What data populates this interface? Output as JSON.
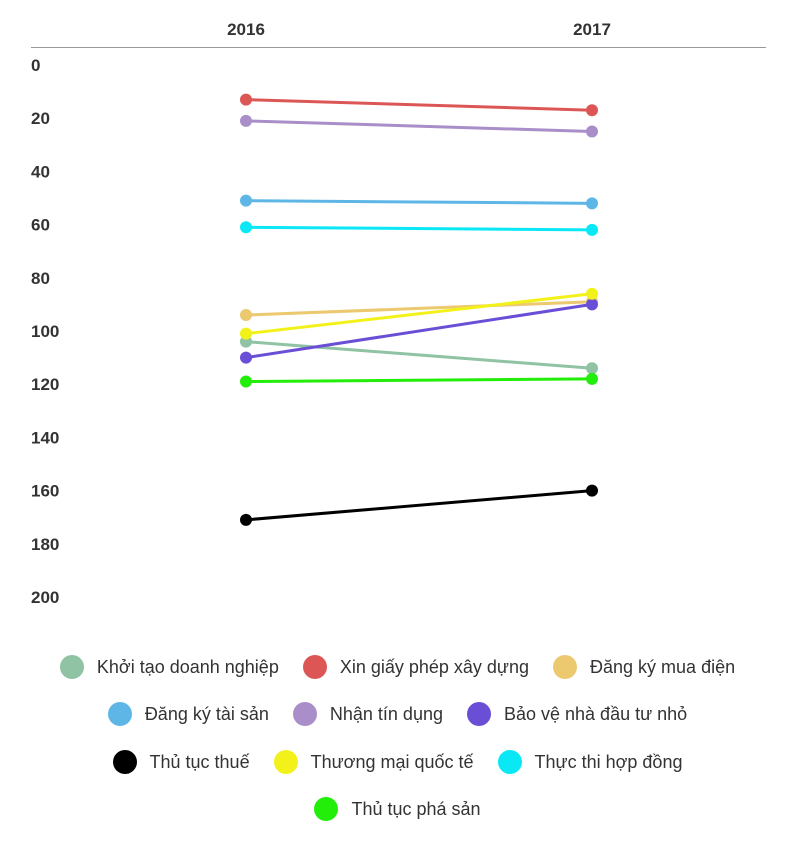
{
  "chart_data": {
    "type": "line",
    "subtype": "slope",
    "x": [
      "2016",
      "2017"
    ],
    "y_axis": {
      "ylim": [
        0,
        200
      ],
      "inverted": true,
      "ticks": [
        "0",
        "20",
        "40",
        "60",
        "80",
        "100",
        "120",
        "140",
        "160",
        "180",
        "200"
      ],
      "tick_values": [
        0,
        20,
        40,
        60,
        80,
        100,
        120,
        140,
        160,
        180,
        200
      ]
    },
    "series": [
      {
        "name": "Khởi tạo doanh nghiệp",
        "color": "#8fc3a3",
        "values": [
          104,
          114
        ]
      },
      {
        "name": "Xin giấy phép xây dựng",
        "color": "#dc5656",
        "values": [
          13,
          17
        ]
      },
      {
        "name": "Đăng ký mua điện",
        "color": "#ecc86e",
        "values": [
          94,
          89
        ]
      },
      {
        "name": "Đăng ký tài sản",
        "color": "#5eb6e6",
        "values": [
          51,
          52
        ]
      },
      {
        "name": "Nhận tín dụng",
        "color": "#a98ec9",
        "values": [
          21,
          25
        ]
      },
      {
        "name": "Bảo vệ nhà đầu tư nhỏ",
        "color": "#6a4fd6",
        "values": [
          110,
          90
        ]
      },
      {
        "name": "Thủ tục thuế",
        "color": "#000000",
        "values": [
          171,
          160
        ]
      },
      {
        "name": "Thương mại quốc tế",
        "color": "#f2f21a",
        "values": [
          101,
          86
        ]
      },
      {
        "name": "Thực thi hợp đồng",
        "color": "#0ae8f5",
        "values": [
          61,
          62
        ]
      },
      {
        "name": "Thủ tục phá sản",
        "color": "#22ee0a",
        "values": [
          119,
          118
        ]
      }
    ],
    "legend_position": "bottom",
    "grid": false
  }
}
